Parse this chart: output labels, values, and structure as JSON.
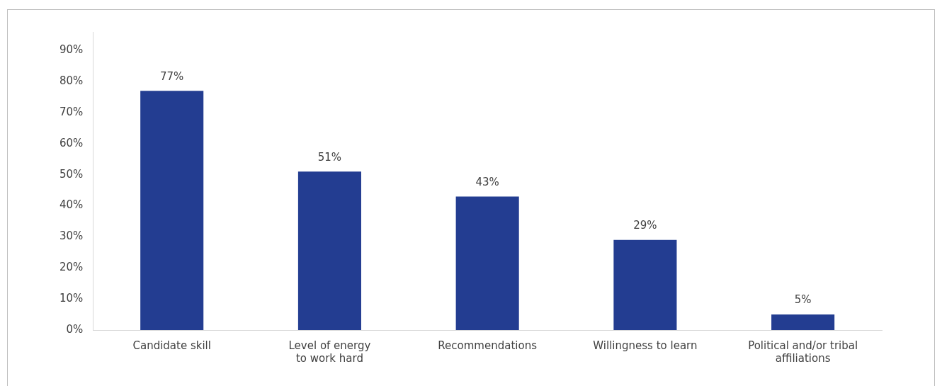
{
  "chart_data": {
    "type": "bar",
    "categories": [
      "Candidate skill",
      "Level of energy\nto work hard",
      "Recommendations",
      "Willingness to learn",
      "Political and/or tribal\naffiliations"
    ],
    "values": [
      77,
      51,
      43,
      29,
      5
    ],
    "value_labels": [
      "77%",
      "51%",
      "43%",
      "29%",
      "5%"
    ],
    "color": "#233d91",
    "ylim": [
      0,
      96
    ],
    "yticks": [
      {
        "value": 0,
        "label": "0%"
      },
      {
        "value": 10,
        "label": "10%"
      },
      {
        "value": 20,
        "label": "20%"
      },
      {
        "value": 30,
        "label": "30%"
      },
      {
        "value": 40,
        "label": "40%"
      },
      {
        "value": 50,
        "label": "50%"
      },
      {
        "value": 60,
        "label": "60%"
      },
      {
        "value": 70,
        "label": "70%"
      },
      {
        "value": 80,
        "label": "80%"
      },
      {
        "value": 90,
        "label": "90%"
      }
    ],
    "grid": false,
    "legend": false
  }
}
